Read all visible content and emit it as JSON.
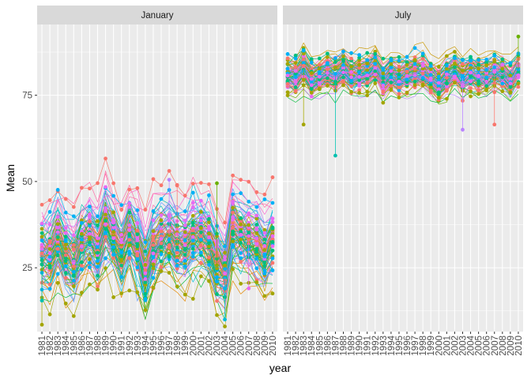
{
  "chart_data": {
    "type": "line",
    "subtype": "faceted line + point (spaghetti), one line per station, facets by month",
    "xlabel": "year",
    "ylabel": "Mean",
    "ylim": [
      6.5,
      95.5
    ],
    "yticks": [
      25,
      50,
      75
    ],
    "years": [
      1981,
      1982,
      1983,
      1984,
      1985,
      1986,
      1987,
      1988,
      1989,
      1990,
      1991,
      1992,
      1993,
      1994,
      1995,
      1996,
      1997,
      1998,
      1999,
      2000,
      2001,
      2002,
      2003,
      2004,
      2005,
      2006,
      2007,
      2008,
      2009,
      2010
    ],
    "grid": true,
    "legend": "none",
    "colors": [
      "#F8766D",
      "#E58700",
      "#C99800",
      "#A3A500",
      "#6BB100",
      "#00BA38",
      "#00BF7D",
      "#00C0AF",
      "#00BCD8",
      "#00B0F6",
      "#619CFF",
      "#B983FF",
      "#E76BF3",
      "#FD61D1",
      "#FF67A4"
    ],
    "facets": [
      {
        "label": "January",
        "center": [
          28.7,
          27.6,
          33.5,
          28.2,
          26.6,
          31.4,
          33.6,
          30.3,
          37.5,
          33.4,
          28.6,
          34.6,
          30.7,
          22.6,
          31.0,
          33.4,
          34.5,
          31.4,
          31.2,
          33.8,
          34.5,
          31.8,
          25.7,
          22.3,
          36.3,
          34.1,
          32.9,
          32.0,
          28.2,
          32.2
        ],
        "spread": 6.5,
        "outliers": [
          {
            "year": 1981,
            "value": 8.5
          },
          {
            "year": 1981,
            "value": 15.5
          },
          {
            "year": 1997,
            "value": 50.5
          },
          {
            "year": 1998,
            "value": 49.0
          },
          {
            "year": 2003,
            "value": 49.5
          },
          {
            "year": 2004,
            "value": 10.0
          },
          {
            "year": 2007,
            "value": 19.0
          }
        ]
      },
      {
        "label": "July",
        "center": [
          80.6,
          80.2,
          82.8,
          79.4,
          80.4,
          81.5,
          80.8,
          82.5,
          80.4,
          80.9,
          81.3,
          82.9,
          79.0,
          80.9,
          79.9,
          80.9,
          81.4,
          81.9,
          79.7,
          78.0,
          80.2,
          81.8,
          79.9,
          81.2,
          80.4,
          80.7,
          81.5,
          81.0,
          78.9,
          82.5
        ],
        "spread": 3.2,
        "outliers": [
          {
            "year": 1983,
            "value": 66.5
          },
          {
            "year": 1987,
            "value": 57.5
          },
          {
            "year": 2003,
            "value": 65.0
          },
          {
            "year": 2007,
            "value": 66.5
          },
          {
            "year": 2010,
            "value": 92.0
          }
        ]
      }
    ]
  }
}
